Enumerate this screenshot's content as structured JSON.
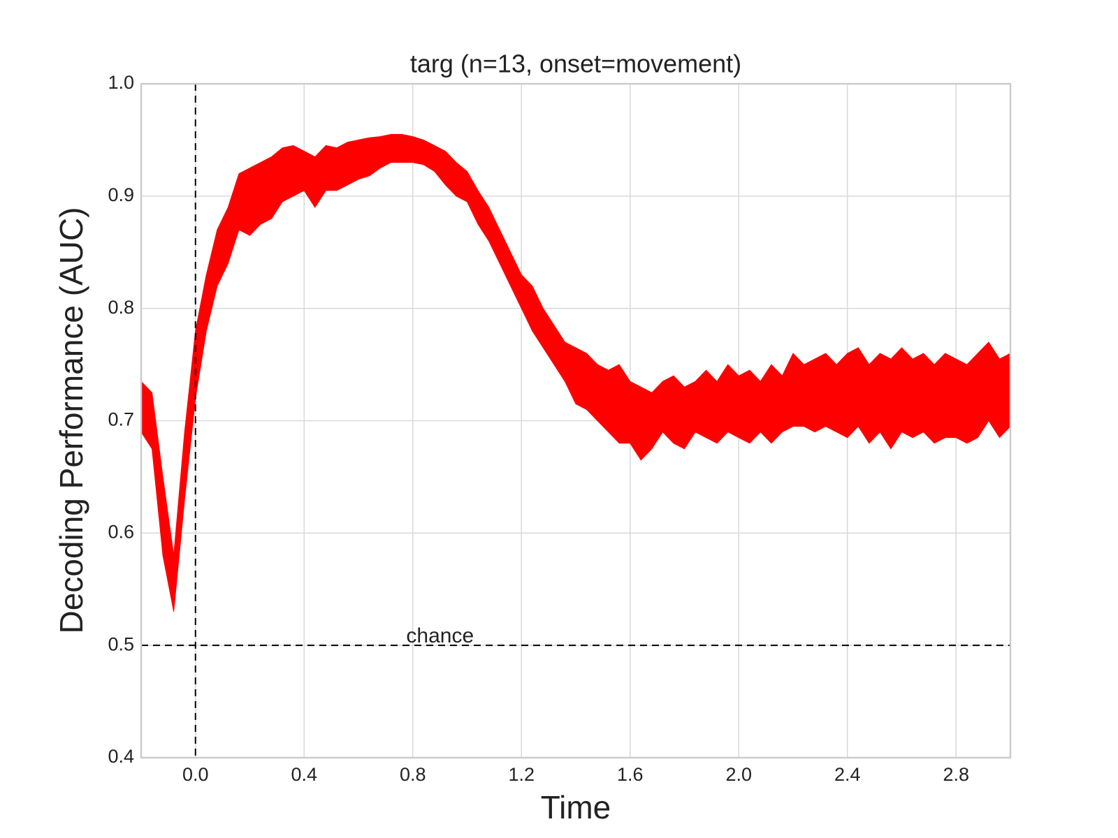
{
  "chart_data": {
    "type": "band",
    "title": "targ (n=13, onset=movement)",
    "xlabel": "Time",
    "ylabel": "Decoding Performance (AUC)",
    "color": "#ff0000",
    "grid": true,
    "xlim": [
      -0.2,
      3.0
    ],
    "ylim": [
      0.4,
      1.0
    ],
    "xticks": [
      {
        "value": 0,
        "label": "0.0"
      },
      0.4,
      0.8,
      1.2,
      1.6,
      {
        "value": 2,
        "label": "2.0"
      },
      2.4,
      2.8
    ],
    "yticks": [
      0.4,
      0.5,
      0.6,
      0.7,
      0.8,
      0.9,
      {
        "value": 1,
        "label": "1.0"
      }
    ],
    "vline": 0,
    "hline": {
      "y": 0.5,
      "label": "chance"
    },
    "x": [
      -0.2,
      -0.16,
      -0.12,
      -0.08,
      -0.04,
      0,
      0.04,
      0.08,
      0.12,
      0.16,
      0.2,
      0.24,
      0.28,
      0.32,
      0.36,
      0.4,
      0.44,
      0.48,
      0.52,
      0.56,
      0.6,
      0.64,
      0.68,
      0.72,
      0.76,
      0.8,
      0.84,
      0.88,
      0.92,
      0.96,
      1,
      1.04,
      1.08,
      1.12,
      1.16,
      1.2,
      1.24,
      1.28,
      1.32,
      1.36,
      1.4,
      1.44,
      1.48,
      1.52,
      1.56,
      1.6,
      1.64,
      1.68,
      1.72,
      1.76,
      1.8,
      1.84,
      1.88,
      1.92,
      1.96,
      2,
      2.04,
      2.08,
      2.12,
      2.16,
      2.2,
      2.24,
      2.28,
      2.32,
      2.36,
      2.4,
      2.44,
      2.48,
      2.52,
      2.56,
      2.6,
      2.64,
      2.68,
      2.72,
      2.76,
      2.8,
      2.84,
      2.88,
      2.92,
      2.96,
      3
    ],
    "upper": [
      0.735,
      0.725,
      0.65,
      0.58,
      0.69,
      0.78,
      0.83,
      0.87,
      0.89,
      0.92,
      0.925,
      0.93,
      0.935,
      0.943,
      0.945,
      0.94,
      0.935,
      0.945,
      0.943,
      0.948,
      0.95,
      0.952,
      0.953,
      0.955,
      0.955,
      0.953,
      0.95,
      0.945,
      0.94,
      0.93,
      0.922,
      0.905,
      0.89,
      0.87,
      0.85,
      0.83,
      0.82,
      0.8,
      0.785,
      0.77,
      0.765,
      0.76,
      0.75,
      0.745,
      0.75,
      0.735,
      0.73,
      0.725,
      0.735,
      0.74,
      0.73,
      0.735,
      0.745,
      0.735,
      0.75,
      0.74,
      0.745,
      0.735,
      0.75,
      0.74,
      0.76,
      0.75,
      0.755,
      0.76,
      0.75,
      0.76,
      0.765,
      0.75,
      0.76,
      0.755,
      0.765,
      0.755,
      0.76,
      0.75,
      0.76,
      0.755,
      0.75,
      0.76,
      0.77,
      0.755,
      0.76
    ],
    "lower": [
      0.69,
      0.675,
      0.58,
      0.53,
      0.63,
      0.72,
      0.78,
      0.82,
      0.84,
      0.87,
      0.865,
      0.875,
      0.88,
      0.895,
      0.9,
      0.905,
      0.89,
      0.905,
      0.905,
      0.91,
      0.915,
      0.918,
      0.925,
      0.93,
      0.93,
      0.93,
      0.928,
      0.922,
      0.91,
      0.9,
      0.895,
      0.875,
      0.86,
      0.84,
      0.82,
      0.8,
      0.78,
      0.765,
      0.75,
      0.735,
      0.715,
      0.71,
      0.7,
      0.69,
      0.68,
      0.68,
      0.665,
      0.675,
      0.69,
      0.68,
      0.675,
      0.69,
      0.685,
      0.68,
      0.69,
      0.685,
      0.68,
      0.69,
      0.68,
      0.69,
      0.695,
      0.695,
      0.69,
      0.695,
      0.69,
      0.685,
      0.695,
      0.68,
      0.69,
      0.675,
      0.69,
      0.685,
      0.69,
      0.68,
      0.685,
      0.685,
      0.68,
      0.685,
      0.7,
      0.685,
      0.695
    ]
  }
}
